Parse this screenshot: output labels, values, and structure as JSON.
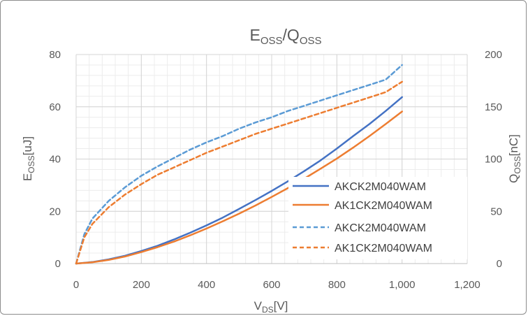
{
  "chart_data": {
    "type": "line",
    "title": {
      "main": "E",
      "sub1": "OSS",
      "slash": "/Q",
      "sub2": "OSS"
    },
    "xlabel": {
      "main": "V",
      "sub": "DS",
      "unit": "[V]"
    },
    "ylabel_left": {
      "main": "E",
      "sub": "OSS",
      "unit": "[uJ]"
    },
    "ylabel_right": {
      "main": "Q",
      "sub": "OSS",
      "unit": "[nC]"
    },
    "xlim": [
      0,
      1200
    ],
    "ylim_left": [
      0,
      80
    ],
    "ylim_right": [
      0,
      200
    ],
    "x_ticks": [
      "0",
      "200",
      "400",
      "600",
      "800",
      "1,000",
      "1,200"
    ],
    "y_left_ticks": [
      "0",
      "20",
      "40",
      "60",
      "80"
    ],
    "y_right_ticks": [
      "0",
      "50",
      "100",
      "150",
      "200"
    ],
    "grid": true,
    "legend_position": "right",
    "series": [
      {
        "name": "AKCK2M040WAM",
        "axis": "left",
        "style": "solid",
        "color": "#4472c4",
        "x": [
          0,
          50,
          100,
          150,
          200,
          250,
          300,
          350,
          400,
          450,
          500,
          550,
          600,
          650,
          700,
          750,
          800,
          850,
          900,
          950,
          1000
        ],
        "y": [
          0,
          0.6,
          1.6,
          3.0,
          4.8,
          6.8,
          9.2,
          11.8,
          14.6,
          17.6,
          20.9,
          24.3,
          27.8,
          31.5,
          35.4,
          39.5,
          44.0,
          48.8,
          53.4,
          58.4,
          63.7
        ]
      },
      {
        "name": "AK1CK2M040WAM",
        "axis": "left",
        "style": "solid",
        "color": "#ed7d31",
        "x": [
          0,
          50,
          100,
          150,
          200,
          250,
          300,
          350,
          400,
          450,
          500,
          550,
          600,
          650,
          700,
          750,
          800,
          850,
          900,
          950,
          1000
        ],
        "y": [
          0,
          0.5,
          1.4,
          2.7,
          4.4,
          6.3,
          8.4,
          10.8,
          13.4,
          16.2,
          19.1,
          22.2,
          25.5,
          28.9,
          32.5,
          36.3,
          40.2,
          44.4,
          48.8,
          53.4,
          58.2
        ]
      },
      {
        "name": "AKCK2M040WAM",
        "axis": "right",
        "style": "dashed",
        "color": "#5b9bd5",
        "x": [
          0,
          25,
          50,
          100,
          150,
          200,
          250,
          300,
          350,
          400,
          450,
          500,
          550,
          600,
          650,
          700,
          750,
          800,
          850,
          900,
          950,
          1000
        ],
        "y": [
          0,
          28,
          43,
          60,
          73,
          84,
          93,
          101,
          109,
          116,
          122,
          129,
          135,
          140,
          146,
          151,
          156,
          161,
          166,
          171,
          176,
          190
        ]
      },
      {
        "name": "AK1CK2M040WAM",
        "axis": "right",
        "style": "dashed",
        "color": "#ed7d31",
        "x": [
          0,
          25,
          50,
          100,
          150,
          200,
          250,
          300,
          350,
          400,
          450,
          500,
          550,
          600,
          650,
          700,
          750,
          800,
          850,
          900,
          950,
          1000
        ],
        "y": [
          0,
          25,
          38,
          54,
          66,
          76,
          85,
          92,
          99,
          106,
          112,
          118,
          124,
          129,
          134,
          139,
          144,
          149,
          154,
          159,
          164,
          174
        ]
      }
    ]
  }
}
